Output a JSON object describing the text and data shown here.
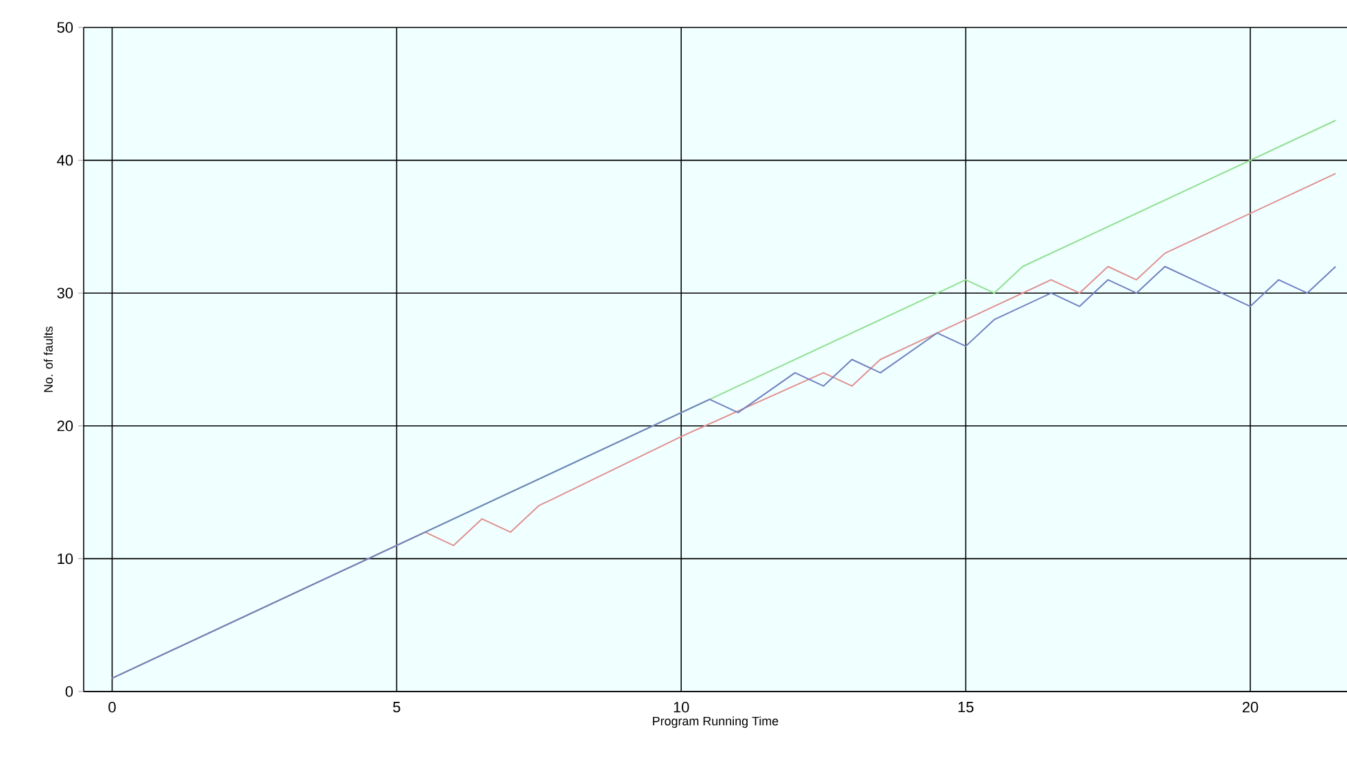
{
  "chart_data": {
    "type": "line",
    "xlabel": "Program Running Time",
    "ylabel": "No. of faults",
    "xlim": [
      -0.5,
      21.7
    ],
    "ylim": [
      0,
      50
    ],
    "xticks": [
      0,
      5,
      10,
      15,
      20
    ],
    "yticks": [
      0,
      10,
      20,
      30,
      40,
      50
    ],
    "grid": true,
    "series": [
      {
        "color": "#90e090",
        "x": [
          0,
          10.5,
          15,
          15.5,
          16,
          21.5
        ],
        "values": [
          1,
          22,
          31,
          30,
          32,
          43
        ]
      },
      {
        "color": "#e09090",
        "x": [
          0,
          5.5,
          6,
          6.5,
          7,
          7.5,
          7.7,
          10,
          12.5,
          13,
          13.5,
          15,
          16.5,
          17,
          17.5,
          18,
          18.5,
          21.5
        ],
        "values": [
          1,
          12,
          11,
          13,
          12,
          14,
          14.4,
          19.2,
          24,
          23,
          25,
          28,
          31,
          30,
          32,
          31,
          33,
          39
        ]
      },
      {
        "color": "#7080c0",
        "x": [
          0,
          10.5,
          11,
          12,
          12.5,
          13,
          13.5,
          14.5,
          15,
          15.5,
          16,
          16.5,
          17,
          17.5,
          18,
          18.5,
          19,
          20,
          20.5,
          21,
          21.5
        ],
        "values": [
          1,
          22,
          21,
          24,
          23,
          25,
          24,
          27,
          26,
          28,
          29,
          30,
          29,
          31,
          30,
          32,
          31,
          29,
          31,
          30,
          32
        ]
      }
    ]
  }
}
